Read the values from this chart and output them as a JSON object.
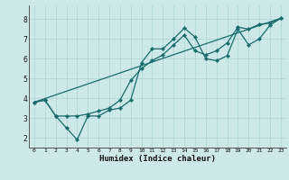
{
  "xlabel": "Humidex (Indice chaleur)",
  "bg_color": "#cce8e8",
  "line_color": "#1a6b6b",
  "grid_color": "#b0d8d8",
  "xlim": [
    -0.5,
    23.5
  ],
  "ylim": [
    1.5,
    8.7
  ],
  "xticks": [
    0,
    1,
    2,
    3,
    4,
    5,
    6,
    7,
    8,
    9,
    10,
    11,
    12,
    13,
    14,
    15,
    16,
    17,
    18,
    19,
    20,
    21,
    22,
    23
  ],
  "yticks": [
    2,
    3,
    4,
    5,
    6,
    7,
    8
  ],
  "line1_x": [
    0,
    1,
    2,
    3,
    4,
    5,
    6,
    7,
    8,
    9,
    10,
    11,
    12,
    13,
    14,
    15,
    16,
    17,
    18,
    19,
    20,
    21,
    22,
    23
  ],
  "line1_y": [
    3.8,
    3.9,
    3.1,
    2.5,
    1.9,
    3.1,
    3.1,
    3.4,
    3.5,
    3.9,
    5.8,
    6.5,
    6.5,
    7.0,
    7.55,
    7.1,
    6.0,
    5.9,
    6.15,
    7.5,
    6.7,
    7.0,
    7.7,
    8.05
  ],
  "line2_x": [
    0,
    1,
    2,
    3,
    4,
    5,
    6,
    7,
    8,
    9,
    10,
    11,
    12,
    13,
    14,
    15,
    16,
    17,
    18,
    19,
    20,
    21,
    22,
    23
  ],
  "line2_y": [
    3.8,
    3.9,
    3.1,
    3.1,
    3.1,
    3.2,
    3.35,
    3.5,
    3.9,
    4.9,
    5.5,
    5.9,
    6.2,
    6.7,
    7.2,
    6.4,
    6.2,
    6.4,
    6.8,
    7.6,
    7.5,
    7.75,
    7.8,
    8.05
  ],
  "line3_x": [
    0,
    23
  ],
  "line3_y": [
    3.8,
    8.05
  ]
}
